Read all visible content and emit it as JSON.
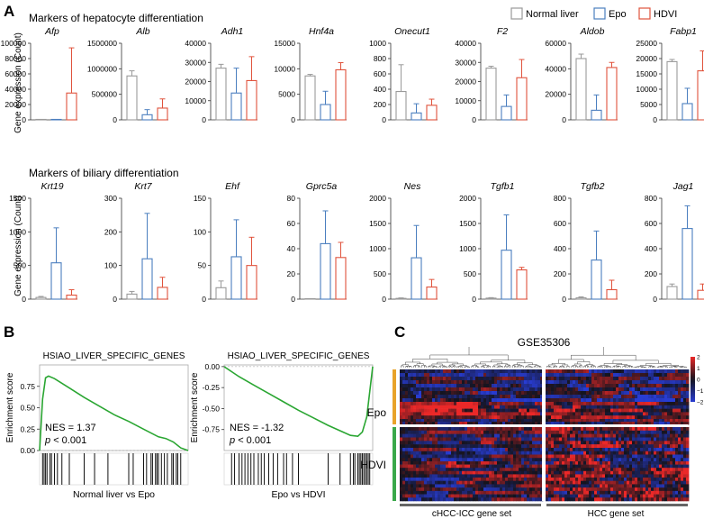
{
  "panels": {
    "A": "A",
    "B": "B",
    "C": "C"
  },
  "legend": [
    "Normal liver",
    "Epo",
    "HDVI"
  ],
  "colors": {
    "normal": "#9a9a9a",
    "epo": "#4b7fbf",
    "hdvi": "#e0533c",
    "gsea_line": "#2aa632",
    "epo_bar": "#e8a32a",
    "hdvi_bar": "#3aa84a"
  },
  "section_titles": {
    "hep": "Markers of hepatocyte differentiation",
    "bil": "Markers of biliary differentiation"
  },
  "ylabel_bar": "Gene expression (Count)",
  "chart_data": [
    {
      "type": "bar",
      "row": "hep",
      "gene": "Afp",
      "ylim": [
        0,
        100000
      ],
      "ticks": [
        "0",
        "20000",
        "40000",
        "60000",
        "80000",
        "100000"
      ],
      "values": [
        0,
        0,
        35000
      ],
      "errors": [
        0,
        0,
        59000
      ]
    },
    {
      "type": "bar",
      "row": "hep",
      "gene": "Alb",
      "ylim": [
        0,
        1500000
      ],
      "ticks": [
        "0",
        "500000",
        "1000000",
        "1500000"
      ],
      "values": [
        860000,
        100000,
        230000
      ],
      "errors": [
        100000,
        100000,
        180000
      ]
    },
    {
      "type": "bar",
      "row": "hep",
      "gene": "Adh1",
      "ylim": [
        0,
        40000
      ],
      "ticks": [
        "0",
        "10000",
        "20000",
        "30000",
        "40000"
      ],
      "values": [
        27000,
        14000,
        20500
      ],
      "errors": [
        2000,
        13000,
        12500
      ]
    },
    {
      "type": "bar",
      "row": "hep",
      "gene": "Hnf4a",
      "ylim": [
        0,
        15000
      ],
      "ticks": [
        "0",
        "5000",
        "10000",
        "15000"
      ],
      "values": [
        8600,
        3000,
        9800
      ],
      "errors": [
        300,
        2600,
        1400
      ]
    },
    {
      "type": "bar",
      "row": "hep",
      "gene": "Onecut1",
      "ylim": [
        0,
        1000
      ],
      "ticks": [
        "0",
        "200",
        "400",
        "600",
        "800",
        "1000"
      ],
      "values": [
        370,
        90,
        190
      ],
      "errors": [
        350,
        120,
        80
      ]
    },
    {
      "type": "bar",
      "row": "hep",
      "gene": "F2",
      "ylim": [
        0,
        40000
      ],
      "ticks": [
        "0",
        "10000",
        "20000",
        "30000",
        "40000"
      ],
      "values": [
        27000,
        7000,
        22000
      ],
      "errors": [
        1000,
        6000,
        9500
      ]
    },
    {
      "type": "bar",
      "row": "hep",
      "gene": "Aldob",
      "ylim": [
        0,
        60000
      ],
      "ticks": [
        "0",
        "20000",
        "40000",
        "60000"
      ],
      "values": [
        48000,
        7500,
        41000
      ],
      "errors": [
        3500,
        12000,
        4000
      ]
    },
    {
      "type": "bar",
      "row": "hep",
      "gene": "Fabp1",
      "ylim": [
        0,
        25000
      ],
      "ticks": [
        "0",
        "5000",
        "10000",
        "15000",
        "20000",
        "25000"
      ],
      "values": [
        19000,
        5300,
        16000
      ],
      "errors": [
        700,
        5000,
        6500
      ]
    },
    {
      "type": "bar",
      "row": "bil",
      "gene": "Krt19",
      "ylim": [
        0,
        1500
      ],
      "ticks": [
        "0",
        "500",
        "1000",
        "1500"
      ],
      "values": [
        25,
        540,
        60
      ],
      "errors": [
        15,
        520,
        80
      ]
    },
    {
      "type": "bar",
      "row": "bil",
      "gene": "Krt7",
      "ylim": [
        0,
        300
      ],
      "ticks": [
        "0",
        "100",
        "200",
        "300"
      ],
      "values": [
        15,
        120,
        35
      ],
      "errors": [
        8,
        135,
        30
      ]
    },
    {
      "type": "bar",
      "row": "bil",
      "gene": "Ehf",
      "ylim": [
        0,
        150
      ],
      "ticks": [
        "0",
        "50",
        "100",
        "150"
      ],
      "values": [
        17,
        63,
        50
      ],
      "errors": [
        10,
        55,
        42
      ]
    },
    {
      "type": "bar",
      "row": "bil",
      "gene": "Gprc5a",
      "ylim": [
        0,
        80
      ],
      "ticks": [
        "0",
        "20",
        "40",
        "60",
        "80"
      ],
      "values": [
        0,
        44,
        33
      ],
      "errors": [
        0,
        26,
        12
      ]
    },
    {
      "type": "bar",
      "row": "bil",
      "gene": "Nes",
      "ylim": [
        0,
        2000
      ],
      "ticks": [
        "0",
        "500",
        "1000",
        "1500",
        "2000"
      ],
      "values": [
        15,
        820,
        240
      ],
      "errors": [
        10,
        640,
        150
      ]
    },
    {
      "type": "bar",
      "row": "bil",
      "gene": "Tgfb1",
      "ylim": [
        0,
        2000
      ],
      "ticks": [
        "0",
        "500",
        "1000",
        "1500",
        "2000"
      ],
      "values": [
        20,
        970,
        580
      ],
      "errors": [
        10,
        700,
        50
      ]
    },
    {
      "type": "bar",
      "row": "bil",
      "gene": "Tgfb2",
      "ylim": [
        0,
        800
      ],
      "ticks": [
        "0",
        "200",
        "400",
        "600",
        "800"
      ],
      "values": [
        10,
        310,
        75
      ],
      "errors": [
        8,
        230,
        75
      ]
    },
    {
      "type": "bar",
      "row": "bil",
      "gene": "Jag1",
      "ylim": [
        0,
        800
      ],
      "ticks": [
        "0",
        "200",
        "400",
        "600",
        "800"
      ],
      "values": [
        100,
        560,
        70
      ],
      "errors": [
        20,
        180,
        50
      ]
    },
    {
      "type": "line",
      "panel": "gsea-left",
      "title": "HSIAO_LIVER_SPECIFIC_GENES",
      "ylabel": "Enrichment score",
      "xlabel": "Normal liver vs Epo",
      "ylim": [
        0,
        1
      ],
      "ticks": [
        "0.00",
        "0.25",
        "0.50",
        "0.75"
      ],
      "nes": "NES = 1.37",
      "p": "< 0.001",
      "x": [
        0,
        0.02,
        0.04,
        0.06,
        0.1,
        0.2,
        0.3,
        0.4,
        0.5,
        0.6,
        0.7,
        0.8,
        0.85,
        0.9,
        0.95,
        1
      ],
      "y": [
        0,
        0.6,
        0.85,
        0.87,
        0.84,
        0.73,
        0.62,
        0.52,
        0.42,
        0.34,
        0.25,
        0.16,
        0.14,
        0.1,
        0.03,
        0
      ],
      "hits": [
        0.02,
        0.03,
        0.04,
        0.05,
        0.07,
        0.08,
        0.1,
        0.12,
        0.15,
        0.2,
        0.3,
        0.37,
        0.46,
        0.6,
        0.63,
        0.7,
        0.72,
        0.75,
        0.76,
        0.78,
        0.79,
        0.8,
        0.82,
        0.84,
        0.86,
        0.89,
        0.9,
        0.92,
        0.93,
        0.95
      ]
    },
    {
      "type": "line",
      "panel": "gsea-right",
      "title": "HSIAO_LIVER_SPECIFIC_GENES",
      "ylabel": "Enrichment score",
      "xlabel": "Epo vs HDVI",
      "ylim": [
        -1,
        0.02
      ],
      "ticks": [
        "0.00",
        "-0.25",
        "-0.50",
        "-0.75"
      ],
      "nes": "NES = -1.32",
      "p": "< 0.001",
      "x": [
        0,
        0.05,
        0.1,
        0.2,
        0.3,
        0.4,
        0.5,
        0.6,
        0.7,
        0.8,
        0.85,
        0.9,
        0.93,
        0.96,
        0.98,
        1
      ],
      "y": [
        0,
        -0.06,
        -0.12,
        -0.22,
        -0.32,
        -0.42,
        -0.52,
        -0.61,
        -0.7,
        -0.78,
        -0.82,
        -0.83,
        -0.78,
        -0.6,
        -0.3,
        0
      ],
      "hits": [
        0.05,
        0.07,
        0.1,
        0.12,
        0.14,
        0.16,
        0.18,
        0.2,
        0.23,
        0.25,
        0.27,
        0.3,
        0.33,
        0.36,
        0.4,
        0.42,
        0.46,
        0.5,
        0.7,
        0.78,
        0.85,
        0.87,
        0.88,
        0.9,
        0.91,
        0.92,
        0.93,
        0.94,
        0.95,
        0.96,
        0.97,
        0.98
      ]
    },
    {
      "type": "heatmap",
      "title": "GSE35306",
      "rows": [
        "Epo",
        "HDVI"
      ],
      "colorbar": [
        "2",
        "1",
        "0",
        "−1",
        "−2"
      ],
      "xgroups": [
        "cHCC-ICC gene set",
        "HCC gene set"
      ]
    }
  ]
}
